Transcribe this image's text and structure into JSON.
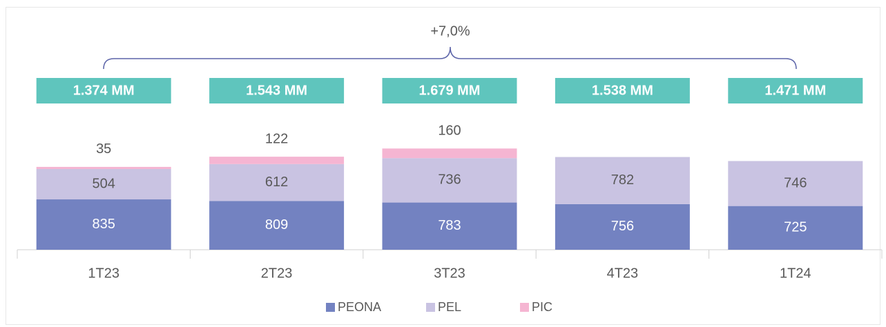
{
  "chart_data": {
    "type": "stacked_bar",
    "annotation": "+7,0%",
    "categories": [
      "1T23",
      "2T23",
      "3T23",
      "4T23",
      "1T24"
    ],
    "totals": [
      "1.374 MM",
      "1.543 MM",
      "1.679 MM",
      "1.538 MM",
      "1.471 MM"
    ],
    "series": [
      {
        "name": "PEONA",
        "color": "#7382c1",
        "values": [
          835,
          809,
          783,
          756,
          725
        ]
      },
      {
        "name": "PEL",
        "color": "#c9c3e2",
        "values": [
          504,
          612,
          736,
          782,
          746
        ]
      },
      {
        "name": "PIC",
        "color": "#f5b5d2",
        "values": [
          35,
          122,
          160,
          null,
          null
        ]
      }
    ],
    "legend": "bottom"
  }
}
